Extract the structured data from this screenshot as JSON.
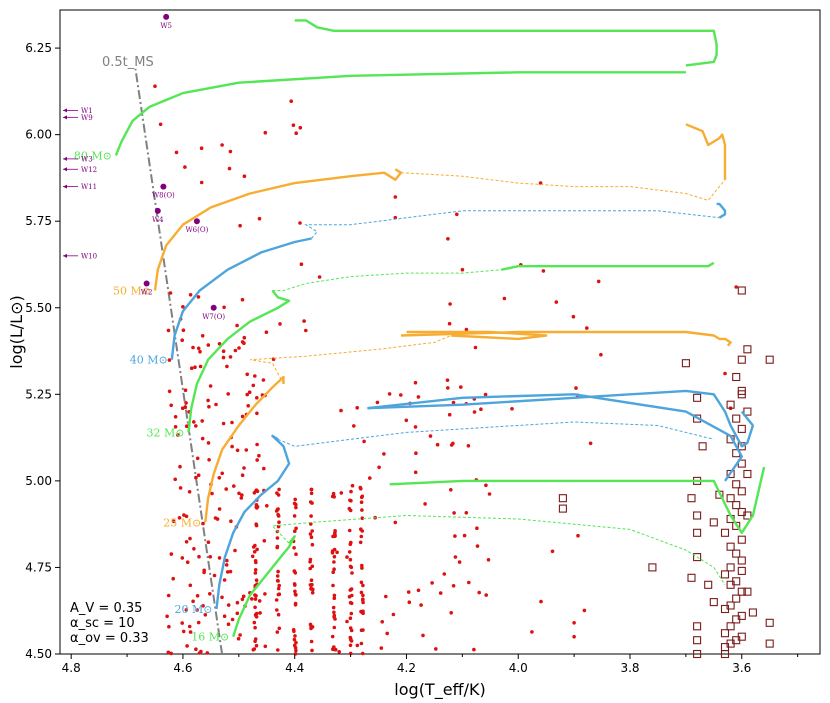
{
  "chart_data": {
    "type": "scatter",
    "xlabel": "log(T_eff/K)",
    "ylabel": "log(L/L⊙)",
    "xlim": [
      4.82,
      3.46
    ],
    "ylim": [
      4.5,
      6.36
    ],
    "x_ticks": [
      4.8,
      4.6,
      4.4,
      4.2,
      4.0,
      3.8,
      3.6
    ],
    "x_tick_labels": [
      "4.8",
      "4.6",
      "4.4",
      "4.2",
      "4.0",
      "3.8",
      "3.6"
    ],
    "y_ticks": [
      4.5,
      4.75,
      5.0,
      5.25,
      5.5,
      5.75,
      6.0,
      6.25
    ],
    "y_tick_labels": [
      "4.50",
      "4.75",
      "5.00",
      "5.25",
      "5.50",
      "5.75",
      "6.00",
      "6.25"
    ],
    "annotation": "0.5t_MS",
    "zams_line": [
      [
        4.53,
        4.5
      ],
      [
        4.685,
        6.19
      ]
    ],
    "parameters": [
      "A_V = 0.35",
      "α_sc = 10",
      "α_ov = 0.33"
    ],
    "colors": {
      "green": "#55e655",
      "orange": "#f7ad32",
      "blue": "#4ea5dc",
      "red_points": "#dd1111",
      "squares": "#7a1b1b",
      "wr": "#800080",
      "zams": "#808080"
    },
    "tracks": [
      {
        "label": "80 M⊙",
        "color": "#55e655",
        "solid": [
          [
            4.72,
            5.94
          ],
          [
            4.71,
            5.98
          ],
          [
            4.69,
            6.04
          ],
          [
            4.66,
            6.08
          ],
          [
            4.6,
            6.12
          ],
          [
            4.5,
            6.15
          ],
          [
            4.3,
            6.17
          ],
          [
            4.0,
            6.18
          ],
          [
            3.7,
            6.18
          ]
        ],
        "solid2": [
          [
            4.4,
            6.33
          ],
          [
            4.38,
            6.33
          ],
          [
            4.36,
            6.31
          ],
          [
            4.33,
            6.3
          ],
          [
            4.3,
            6.3
          ],
          [
            3.86,
            6.3
          ],
          [
            3.65,
            6.3
          ],
          [
            3.645,
            6.26
          ],
          [
            3.645,
            6.23
          ],
          [
            3.65,
            6.21
          ],
          [
            3.7,
            6.2
          ]
        ],
        "dashed": []
      },
      {
        "label": "50 M⊙",
        "color": "#f7ad32",
        "solid": [
          [
            4.65,
            5.55
          ],
          [
            4.645,
            5.61
          ],
          [
            4.63,
            5.68
          ],
          [
            4.6,
            5.74
          ],
          [
            4.55,
            5.79
          ],
          [
            4.48,
            5.83
          ],
          [
            4.4,
            5.86
          ],
          [
            4.3,
            5.88
          ],
          [
            4.24,
            5.89
          ],
          [
            4.22,
            5.87
          ],
          [
            4.21,
            5.89
          ],
          [
            4.22,
            5.9
          ]
        ],
        "solid2": [
          [
            3.7,
            6.03
          ],
          [
            3.67,
            6.01
          ],
          [
            3.66,
            5.97
          ],
          [
            3.65,
            5.98
          ],
          [
            3.64,
            5.99
          ],
          [
            3.635,
            6.0
          ],
          [
            3.63,
            5.97
          ],
          [
            3.63,
            5.87
          ]
        ],
        "dashed": [
          [
            4.21,
            5.89
          ],
          [
            4.1,
            5.88
          ],
          [
            4.0,
            5.86
          ],
          [
            3.9,
            5.85
          ],
          [
            3.8,
            5.85
          ],
          [
            3.7,
            5.83
          ],
          [
            3.66,
            5.81
          ],
          [
            3.63,
            5.87
          ]
        ]
      },
      {
        "label": "40 M⊙",
        "color": "#4ea5dc",
        "solid": [
          [
            4.62,
            5.35
          ],
          [
            4.615,
            5.42
          ],
          [
            4.6,
            5.49
          ],
          [
            4.57,
            5.55
          ],
          [
            4.52,
            5.61
          ],
          [
            4.46,
            5.66
          ],
          [
            4.4,
            5.69
          ],
          [
            4.37,
            5.7
          ]
        ],
        "solid2": [
          [
            3.645,
            5.8
          ],
          [
            3.64,
            5.8
          ],
          [
            3.63,
            5.78
          ],
          [
            3.63,
            5.77
          ],
          [
            3.64,
            5.76
          ]
        ],
        "dashed": [
          [
            4.37,
            5.7
          ],
          [
            4.36,
            5.72
          ],
          [
            4.38,
            5.74
          ],
          [
            4.3,
            5.74
          ],
          [
            4.1,
            5.78
          ],
          [
            3.9,
            5.78
          ],
          [
            3.75,
            5.78
          ],
          [
            3.64,
            5.76
          ]
        ]
      },
      {
        "label": "32 M⊙",
        "color": "#55e655",
        "solid": [
          [
            4.59,
            5.14
          ],
          [
            4.585,
            5.21
          ],
          [
            4.575,
            5.28
          ],
          [
            4.555,
            5.35
          ],
          [
            4.52,
            5.41
          ],
          [
            4.48,
            5.46
          ],
          [
            4.43,
            5.5
          ],
          [
            4.41,
            5.52
          ],
          [
            4.43,
            5.53
          ],
          [
            4.44,
            5.55
          ]
        ],
        "solid2": [
          [
            4.03,
            5.61
          ],
          [
            4.0,
            5.62
          ],
          [
            3.9,
            5.62
          ],
          [
            3.8,
            5.62
          ],
          [
            3.7,
            5.62
          ],
          [
            3.66,
            5.62
          ],
          [
            3.65,
            5.63
          ]
        ],
        "dashed": [
          [
            4.44,
            5.55
          ],
          [
            4.42,
            5.55
          ],
          [
            4.38,
            5.57
          ],
          [
            4.3,
            5.59
          ],
          [
            4.2,
            5.6
          ],
          [
            4.1,
            5.6
          ],
          [
            4.03,
            5.61
          ]
        ]
      },
      {
        "label": "25 M⊙",
        "color": "#f7ad32",
        "solid": [
          [
            4.56,
            4.88
          ],
          [
            4.555,
            4.95
          ],
          [
            4.545,
            5.02
          ],
          [
            4.53,
            5.09
          ],
          [
            4.5,
            5.16
          ],
          [
            4.47,
            5.22
          ],
          [
            4.44,
            5.27
          ],
          [
            4.42,
            5.3
          ],
          [
            4.42,
            5.28
          ]
        ],
        "solid2": [
          [
            4.21,
            5.42
          ],
          [
            4.0,
            5.43
          ],
          [
            3.85,
            5.43
          ],
          [
            3.7,
            5.43
          ],
          [
            3.65,
            5.42
          ],
          [
            3.64,
            5.41
          ],
          [
            3.63,
            5.41
          ],
          [
            3.62,
            5.4
          ],
          [
            3.625,
            5.39
          ]
        ],
        "solid3": [
          [
            4.12,
            5.42
          ],
          [
            4.0,
            5.41
          ],
          [
            3.95,
            5.42
          ],
          [
            4.05,
            5.43
          ],
          [
            4.2,
            5.43
          ]
        ],
        "dashed": [
          [
            4.42,
            5.28
          ],
          [
            4.44,
            5.34
          ],
          [
            4.48,
            5.35
          ],
          [
            4.38,
            5.36
          ],
          [
            4.25,
            5.38
          ],
          [
            4.15,
            5.4
          ],
          [
            4.12,
            5.42
          ]
        ]
      },
      {
        "label": "20 M⊙",
        "color": "#4ea5dc",
        "solid": [
          [
            4.54,
            4.63
          ],
          [
            4.535,
            4.7
          ],
          [
            4.525,
            4.78
          ],
          [
            4.51,
            4.85
          ],
          [
            4.49,
            4.91
          ],
          [
            4.46,
            4.96
          ],
          [
            4.43,
            5.0
          ],
          [
            4.41,
            5.05
          ],
          [
            4.42,
            5.1
          ],
          [
            4.44,
            5.13
          ],
          [
            4.43,
            5.12
          ]
        ],
        "solid2": [
          [
            4.27,
            5.21
          ],
          [
            4.1,
            5.22
          ],
          [
            3.9,
            5.24
          ],
          [
            3.7,
            5.26
          ],
          [
            3.65,
            5.25
          ],
          [
            3.63,
            5.2
          ],
          [
            3.62,
            5.16
          ],
          [
            3.6,
            5.1
          ],
          [
            3.59,
            5.11
          ],
          [
            3.58,
            5.16
          ],
          [
            3.6,
            5.2
          ]
        ],
        "solid3": [
          [
            4.27,
            5.21
          ],
          [
            4.1,
            5.24
          ],
          [
            3.9,
            5.25
          ],
          [
            3.7,
            5.2
          ],
          [
            3.62,
            5.13
          ],
          [
            3.6,
            5.07
          ],
          [
            3.63,
            5.0
          ]
        ],
        "dashed": [
          [
            4.43,
            5.12
          ],
          [
            4.4,
            5.1
          ],
          [
            4.3,
            5.12
          ],
          [
            4.2,
            5.14
          ],
          [
            4.1,
            5.15
          ],
          [
            3.9,
            5.17
          ],
          [
            3.75,
            5.16
          ],
          [
            3.65,
            5.12
          ]
        ]
      },
      {
        "label": "16 M⊙",
        "color": "#55e655",
        "solid": [
          [
            4.51,
            4.55
          ],
          [
            4.5,
            4.6
          ],
          [
            4.48,
            4.67
          ],
          [
            4.45,
            4.73
          ],
          [
            4.43,
            4.77
          ],
          [
            4.41,
            4.81
          ],
          [
            4.4,
            4.84
          ],
          [
            4.41,
            4.82
          ]
        ],
        "solid2": [
          [
            4.23,
            4.99
          ],
          [
            4.1,
            5.0
          ],
          [
            3.9,
            5.0
          ],
          [
            3.7,
            5.0
          ],
          [
            3.65,
            5.0
          ],
          [
            3.62,
            4.9
          ],
          [
            3.6,
            4.85
          ],
          [
            3.58,
            4.9
          ],
          [
            3.57,
            4.97
          ],
          [
            3.56,
            5.04
          ]
        ],
        "dashed": [
          [
            4.41,
            4.82
          ],
          [
            4.44,
            4.87
          ],
          [
            4.37,
            4.88
          ],
          [
            4.2,
            4.9
          ],
          [
            4.0,
            4.89
          ],
          [
            3.8,
            4.86
          ],
          [
            3.7,
            4.8
          ],
          [
            3.65,
            4.75
          ],
          [
            3.63,
            4.7
          ]
        ]
      }
    ],
    "wr_stars": [
      {
        "name": "W5",
        "x": 4.63,
        "y": 6.34,
        "point": true
      },
      {
        "name": "W8(O)",
        "x": 4.635,
        "y": 5.85,
        "point": true
      },
      {
        "name": "W4",
        "x": 4.645,
        "y": 5.78,
        "point": true
      },
      {
        "name": "W6(O)",
        "x": 4.575,
        "y": 5.75,
        "point": true
      },
      {
        "name": "W2",
        "x": 4.665,
        "y": 5.57,
        "point": true
      },
      {
        "name": "W7(O)",
        "x": 4.545,
        "y": 5.5,
        "point": true
      },
      {
        "name": "W1",
        "y": 6.07,
        "point": false
      },
      {
        "name": "W9",
        "y": 6.05,
        "point": false
      },
      {
        "name": "W3",
        "y": 5.93,
        "point": false
      },
      {
        "name": "W12",
        "y": 5.9,
        "point": false
      },
      {
        "name": "W11",
        "y": 5.85,
        "point": false
      },
      {
        "name": "W10",
        "y": 5.65,
        "point": false
      }
    ],
    "squares": [
      [
        3.63,
        4.5
      ],
      [
        3.63,
        4.52
      ],
      [
        3.62,
        4.53
      ],
      [
        3.61,
        4.54
      ],
      [
        3.6,
        4.55
      ],
      [
        3.63,
        4.56
      ],
      [
        3.62,
        4.58
      ],
      [
        3.61,
        4.6
      ],
      [
        3.6,
        4.61
      ],
      [
        3.63,
        4.63
      ],
      [
        3.62,
        4.64
      ],
      [
        3.61,
        4.66
      ],
      [
        3.6,
        4.68
      ],
      [
        3.62,
        4.7
      ],
      [
        3.61,
        4.71
      ],
      [
        3.63,
        4.73
      ],
      [
        3.62,
        4.75
      ],
      [
        3.6,
        4.77
      ],
      [
        3.61,
        4.79
      ],
      [
        3.62,
        4.81
      ],
      [
        3.6,
        4.83
      ],
      [
        3.63,
        4.85
      ],
      [
        3.61,
        4.87
      ],
      [
        3.62,
        4.89
      ],
      [
        3.6,
        4.91
      ],
      [
        3.61,
        4.93
      ],
      [
        3.62,
        4.95
      ],
      [
        3.6,
        4.97
      ],
      [
        3.61,
        4.99
      ],
      [
        3.62,
        5.02
      ],
      [
        3.6,
        5.05
      ],
      [
        3.61,
        5.08
      ],
      [
        3.62,
        5.12
      ],
      [
        3.6,
        5.15
      ],
      [
        3.61,
        5.18
      ],
      [
        3.62,
        5.22
      ],
      [
        3.6,
        5.26
      ],
      [
        3.61,
        5.3
      ],
      [
        3.6,
        5.35
      ],
      [
        3.59,
        5.38
      ],
      [
        3.6,
        5.25
      ],
      [
        3.59,
        5.2
      ],
      [
        3.6,
        5.1
      ],
      [
        3.59,
        5.02
      ],
      [
        3.59,
        4.9
      ],
      [
        3.6,
        4.74
      ],
      [
        3.59,
        4.68
      ],
      [
        3.58,
        4.62
      ],
      [
        3.68,
        4.54
      ],
      [
        3.68,
        4.5
      ],
      [
        3.68,
        4.58
      ],
      [
        3.68,
        4.78
      ],
      [
        3.69,
        4.72
      ],
      [
        3.68,
        4.85
      ],
      [
        3.68,
        4.9
      ],
      [
        3.69,
        4.95
      ],
      [
        3.68,
        5.0
      ],
      [
        3.67,
        5.1
      ],
      [
        3.68,
        5.18
      ],
      [
        3.68,
        5.24
      ],
      [
        3.7,
        5.34
      ],
      [
        3.65,
        4.88
      ],
      [
        3.66,
        4.7
      ],
      [
        3.65,
        4.65
      ],
      [
        3.55,
        5.35
      ],
      [
        3.55,
        4.59
      ],
      [
        3.55,
        4.53
      ],
      [
        3.6,
        5.55
      ],
      [
        3.76,
        4.75
      ],
      [
        3.92,
        4.92
      ],
      [
        3.92,
        4.95
      ],
      [
        3.64,
        4.96
      ]
    ],
    "red_points_note": "dense field of red points"
  }
}
